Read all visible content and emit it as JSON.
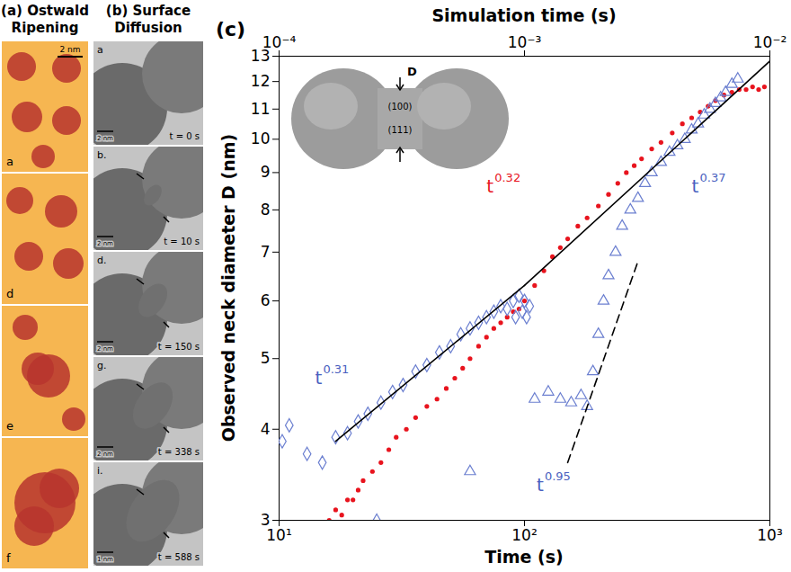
{
  "panel_a": {
    "title": "(a) Ostwald Ripening",
    "frames": [
      {
        "label": "a",
        "scale_bar": "2 nm"
      },
      {
        "label": "d"
      },
      {
        "label": "e"
      },
      {
        "label": "f"
      }
    ]
  },
  "panel_b": {
    "title": "(b) Surface Diffusion",
    "frames": [
      {
        "label": "a",
        "time": "t = 0 s",
        "scale_bar": "2 nm"
      },
      {
        "label": "b.",
        "time": "t = 10 s",
        "scale_bar": "2 nm"
      },
      {
        "label": "d.",
        "time": "t = 150 s",
        "scale_bar": "2 nm"
      },
      {
        "label": "g.",
        "time": "t = 338 s",
        "scale_bar": "2 nm"
      },
      {
        "label": "i.",
        "time": "t = 588 s",
        "scale_bar": "1 nm"
      }
    ]
  },
  "chart_data": {
    "type": "scatter",
    "label": "(c)",
    "x_label": "Time (s)",
    "x2_label": "Simulation time (s)",
    "y_label": "Observed neck diameter D (nm)",
    "log": true,
    "grid": false,
    "xlim": [
      10,
      1000
    ],
    "xticks": [
      {
        "value": 10,
        "label": "10¹"
      },
      {
        "value": 100,
        "label": "10²"
      },
      {
        "value": 1000,
        "label": "10³"
      }
    ],
    "x2lim": [
      0.0001,
      0.01
    ],
    "x2ticks": [
      {
        "value": 0.0001,
        "label": "10⁻⁴"
      },
      {
        "value": 0.001,
        "label": "10⁻³"
      },
      {
        "value": 0.01,
        "label": "10⁻²"
      }
    ],
    "ylim": [
      3,
      13
    ],
    "yticks": [
      3,
      4,
      5,
      6,
      7,
      8,
      9,
      10,
      11,
      12,
      13
    ],
    "inset_labels": [
      "D",
      "(100)",
      "(111)"
    ],
    "series": [
      {
        "type": "scatter",
        "color": "#e8141e",
        "marker": "circle",
        "x": [
          16,
          17,
          18,
          19,
          20,
          21,
          22,
          24,
          26,
          28,
          30,
          33,
          36,
          40,
          44,
          48,
          52,
          56,
          60,
          65,
          70,
          75,
          80,
          85,
          90,
          95,
          100,
          110,
          120,
          130,
          140,
          150,
          165,
          180,
          200,
          220,
          240,
          260,
          280,
          300,
          330,
          360,
          400,
          440,
          480,
          520,
          560,
          600,
          650,
          700,
          750,
          800,
          850,
          900,
          950
        ],
        "values": [
          3.0,
          3.1,
          3.05,
          3.2,
          3.2,
          3.3,
          3.4,
          3.5,
          3.6,
          3.75,
          3.9,
          4.0,
          4.15,
          4.3,
          4.4,
          4.55,
          4.7,
          4.85,
          5.0,
          5.2,
          5.35,
          5.5,
          5.6,
          5.7,
          5.8,
          5.85,
          6.0,
          6.3,
          6.6,
          6.9,
          7.1,
          7.3,
          7.6,
          7.8,
          8.1,
          8.4,
          8.7,
          9.0,
          9.2,
          9.4,
          9.7,
          9.9,
          10.2,
          10.5,
          10.7,
          10.9,
          11.1,
          11.3,
          11.5,
          11.6,
          11.7,
          11.7,
          11.8,
          11.7,
          11.8
        ]
      },
      {
        "type": "scatter",
        "color": "#6b7fd0",
        "marker": "diamond-open",
        "x": [
          10.3,
          11,
          13,
          15,
          17,
          19,
          21,
          23,
          26,
          29,
          32,
          36,
          40,
          45,
          50,
          55,
          60,
          65,
          70,
          75,
          80,
          85,
          90,
          92,
          95,
          98,
          100,
          102,
          105
        ],
        "values": [
          3.85,
          4.05,
          3.7,
          3.6,
          3.9,
          3.95,
          4.1,
          4.2,
          4.35,
          4.5,
          4.6,
          4.8,
          4.9,
          5.1,
          5.2,
          5.4,
          5.5,
          5.6,
          5.7,
          5.8,
          5.9,
          5.85,
          6.0,
          5.7,
          6.1,
          5.8,
          6.0,
          5.7,
          5.9
        ]
      },
      {
        "type": "scatter",
        "color": "#6b7fd0",
        "marker": "triangle-open",
        "x": [
          25,
          60,
          110,
          125,
          140,
          155,
          170,
          180,
          190,
          200,
          210,
          220,
          235,
          250,
          270,
          290,
          310,
          330,
          360,
          390,
          420,
          450,
          480,
          510,
          540,
          570,
          600,
          630,
          660,
          700,
          740
        ],
        "values": [
          3.0,
          3.5,
          4.4,
          4.5,
          4.4,
          4.35,
          4.45,
          4.3,
          4.8,
          5.4,
          6.0,
          6.5,
          7.0,
          7.6,
          8.0,
          8.3,
          8.7,
          9.0,
          9.3,
          9.6,
          9.8,
          10.0,
          10.3,
          10.5,
          10.8,
          11.0,
          11.2,
          11.4,
          11.6,
          11.9,
          12.1
        ]
      },
      {
        "type": "line",
        "color": "#000000",
        "line_style": "solid",
        "x": [
          17,
          100
        ],
        "values": [
          3.85,
          6.3
        ]
      },
      {
        "type": "line",
        "color": "#000000",
        "line_style": "solid",
        "x": [
          100,
          1000
        ],
        "values": [
          6.3,
          12.8
        ]
      },
      {
        "type": "line",
        "color": "#000000",
        "line_style": "dashed",
        "x": [
          150,
          290
        ],
        "values": [
          3.6,
          6.8
        ]
      }
    ],
    "annotations": [
      {
        "text": "t",
        "superscript": "0.31",
        "x": 14,
        "y": 4.7,
        "color": "#4a5fc0"
      },
      {
        "text": "t",
        "superscript": "0.32",
        "x": 70,
        "y": 8.6,
        "color": "#e8141e"
      },
      {
        "text": "t",
        "superscript": "0.37",
        "x": 480,
        "y": 8.6,
        "color": "#4a5fc0"
      },
      {
        "text": "t",
        "superscript": "0.95",
        "x": 112,
        "y": 3.35,
        "color": "#4a5fc0"
      }
    ]
  }
}
